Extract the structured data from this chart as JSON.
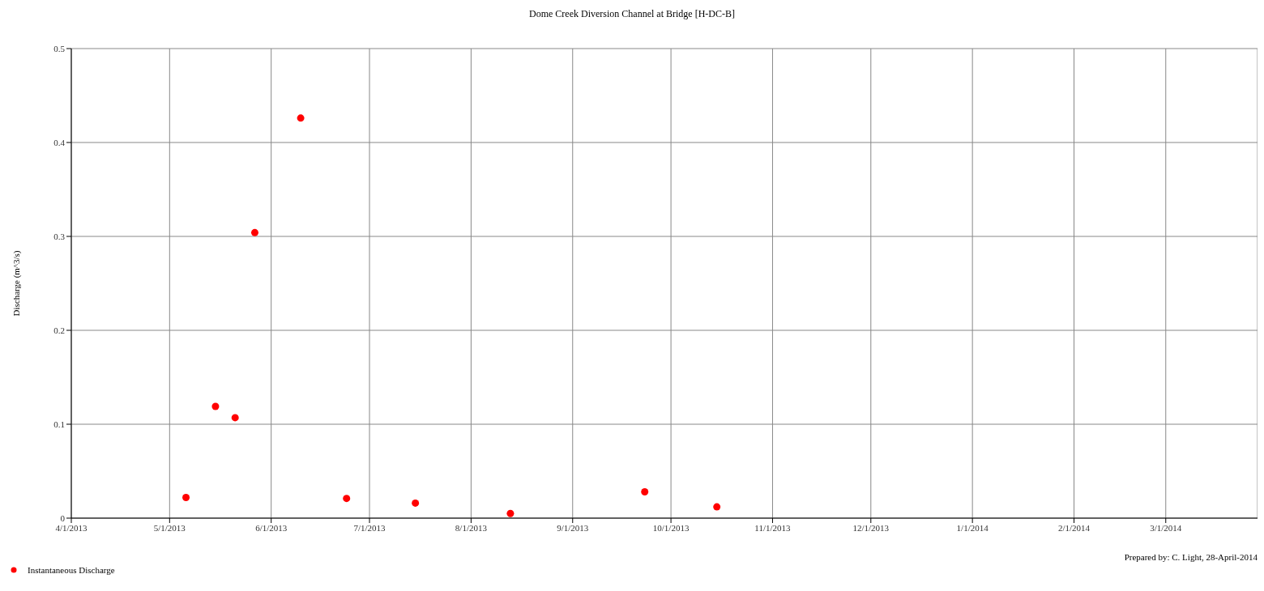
{
  "chart_data": {
    "type": "scatter",
    "title": "Dome Creek Diversion Channel at Bridge [H-DC-B]",
    "ylabel": "Discharge (m^3/s)",
    "series": [
      {
        "name": "Instantaneous Discharge",
        "color": "#ff0000",
        "x": [
          "2013-05-06",
          "2013-05-15",
          "2013-05-21",
          "2013-05-27",
          "2013-06-10",
          "2013-06-24",
          "2013-07-15",
          "2013-08-13",
          "2013-09-23",
          "2013-10-15"
        ],
        "values": [
          0.022,
          0.119,
          0.107,
          0.304,
          0.426,
          0.021,
          0.016,
          0.005,
          0.028,
          0.012
        ]
      }
    ],
    "xlim": [
      "2013-04-01",
      "2014-03-29"
    ],
    "xticks": [
      {
        "value": "2013-04-01",
        "label": "4/1/2013"
      },
      {
        "value": "2013-05-01",
        "label": "5/1/2013"
      },
      {
        "value": "2013-06-01",
        "label": "6/1/2013"
      },
      {
        "value": "2013-07-01",
        "label": "7/1/2013"
      },
      {
        "value": "2013-08-01",
        "label": "8/1/2013"
      },
      {
        "value": "2013-09-01",
        "label": "9/1/2013"
      },
      {
        "value": "2013-10-01",
        "label": "10/1/2013"
      },
      {
        "value": "2013-11-01",
        "label": "11/1/2013"
      },
      {
        "value": "2013-12-01",
        "label": "12/1/2013"
      },
      {
        "value": "2014-01-01",
        "label": "1/1/2014"
      },
      {
        "value": "2014-02-01",
        "label": "2/1/2014"
      },
      {
        "value": "2014-03-01",
        "label": "3/1/2014"
      }
    ],
    "ylim": [
      0,
      0.5
    ],
    "yticks": [
      0,
      0.1,
      0.2,
      0.3,
      0.4,
      0.5
    ],
    "grid": true,
    "legend": "bottom left",
    "marker": "circle",
    "annotations": [
      "Prepared by: C. Light, 28-April-2014"
    ]
  }
}
